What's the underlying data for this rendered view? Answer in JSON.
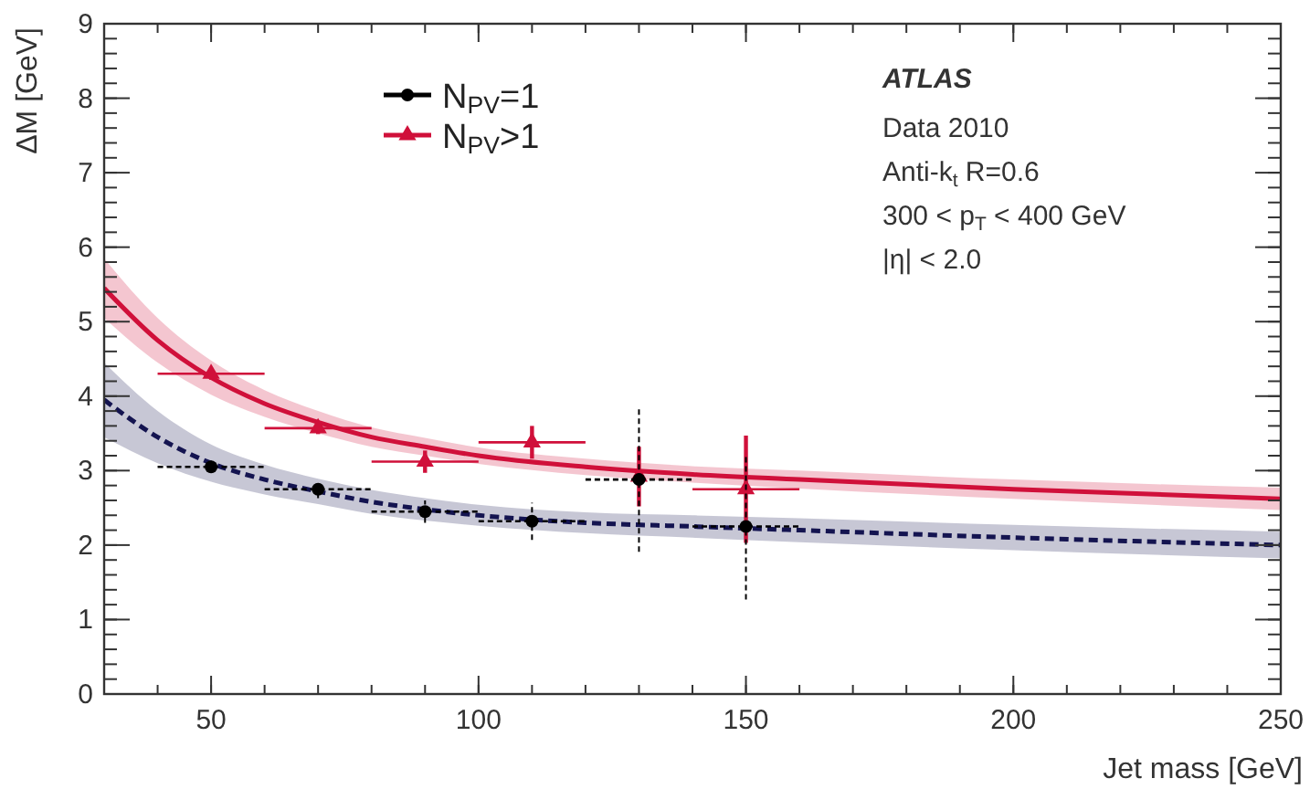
{
  "chart_data": {
    "type": "scatter",
    "xlabel": "Jet mass [GeV]",
    "ylabel": "ΔM [GeV]",
    "xlim": [
      30,
      250
    ],
    "xticks": [
      50,
      100,
      150,
      200,
      250
    ],
    "ylim": [
      0,
      9
    ],
    "yticks": [
      0,
      1,
      2,
      3,
      4,
      5,
      6,
      7,
      8,
      9
    ],
    "grid": false,
    "legend": "top left",
    "annotations": [
      "ATLAS",
      "Data 2010",
      "Anti-k$_{t}$ R=0.6",
      "300 < p$_{T}$ < 400 GeV",
      "|η| < 2.0"
    ],
    "series": [
      {
        "type": "line",
        "color": "#141450",
        "line_style": "dashed",
        "marker": "none",
        "x": [
          30,
          40,
          50,
          60,
          70,
          80,
          90,
          100,
          120,
          140,
          160,
          200,
          250
        ],
        "values": [
          3.95,
          3.45,
          3.1,
          2.88,
          2.72,
          2.58,
          2.48,
          2.4,
          2.3,
          2.25,
          2.2,
          2.1,
          2.0
        ],
        "lower": [
          3.45,
          3.1,
          2.85,
          2.68,
          2.55,
          2.42,
          2.33,
          2.26,
          2.16,
          2.1,
          2.04,
          1.93,
          1.82
        ],
        "upper": [
          4.45,
          3.8,
          3.35,
          3.08,
          2.89,
          2.74,
          2.63,
          2.54,
          2.44,
          2.4,
          2.36,
          2.27,
          2.18
        ]
      },
      {
        "type": "line",
        "color": "#d0103a",
        "line_style": "solid",
        "marker": "none",
        "x": [
          30,
          40,
          50,
          60,
          70,
          80,
          90,
          100,
          120,
          140,
          160,
          200,
          250
        ],
        "values": [
          5.45,
          4.75,
          4.25,
          3.9,
          3.65,
          3.45,
          3.32,
          3.2,
          3.05,
          2.95,
          2.88,
          2.75,
          2.62
        ],
        "lower": [
          5.05,
          4.45,
          4.02,
          3.72,
          3.5,
          3.32,
          3.2,
          3.09,
          2.94,
          2.84,
          2.76,
          2.62,
          2.47
        ],
        "upper": [
          5.85,
          5.05,
          4.48,
          4.08,
          3.8,
          3.58,
          3.44,
          3.31,
          3.16,
          3.06,
          3.0,
          2.88,
          2.77
        ]
      },
      {
        "name": "N$_{PV}$=1",
        "color": "#000000",
        "marker": "circle",
        "line_style": "dashed",
        "x": [
          50,
          70,
          90,
          110,
          130,
          150
        ],
        "values": [
          3.05,
          2.75,
          2.45,
          2.32,
          2.88,
          2.25
        ],
        "xerrors": [
          10,
          10,
          10,
          10,
          10,
          10
        ],
        "errors": [
          0.08,
          0.12,
          0.15,
          0.25,
          0.97,
          0.98
        ]
      },
      {
        "name": "N$_{PV}$>1",
        "color": "#d0103a",
        "marker": "triangle",
        "line_style": "solid",
        "x": [
          50,
          70,
          90,
          110,
          130,
          150
        ],
        "values": [
          4.3,
          3.57,
          3.12,
          3.38,
          2.92,
          2.75
        ],
        "xerrors": [
          10,
          10,
          10,
          10,
          null,
          10
        ],
        "errors": [
          0.08,
          0.08,
          0.15,
          0.22,
          0.4,
          0.72
        ]
      }
    ]
  }
}
